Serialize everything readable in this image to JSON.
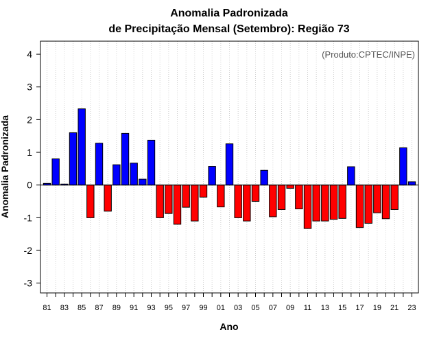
{
  "chart_data": {
    "type": "bar",
    "title_line1": "Anomalia Padronizada",
    "title_line2": "de Precipitação Mensal (Setembro): Região 73",
    "annotation": "(Produto:CPTEC/INPE)",
    "xlabel": "Ano",
    "ylabel": "Anomalia Padronizada",
    "ylim": [
      -3.3,
      4.4
    ],
    "yticks": [
      -3,
      -2,
      -1,
      0,
      1,
      2,
      3,
      4
    ],
    "grid": "vertical dotted at each year",
    "positive_color": "#0000ff",
    "negative_color": "#ff0000",
    "categories": [
      "81",
      "82",
      "83",
      "84",
      "85",
      "86",
      "87",
      "88",
      "89",
      "90",
      "91",
      "92",
      "93",
      "94",
      "95",
      "96",
      "97",
      "98",
      "99",
      "00",
      "01",
      "02",
      "03",
      "04",
      "05",
      "06",
      "07",
      "08",
      "09",
      "10",
      "11",
      "12",
      "13",
      "14",
      "15",
      "16",
      "17",
      "18",
      "19",
      "20",
      "21",
      "22",
      "23"
    ],
    "xtick_labels": [
      "81",
      "83",
      "85",
      "87",
      "89",
      "91",
      "93",
      "95",
      "97",
      "99",
      "01",
      "03",
      "05",
      "07",
      "09",
      "11",
      "13",
      "15",
      "17",
      "19",
      "21",
      "23"
    ],
    "values": [
      0.05,
      0.8,
      0.03,
      1.6,
      2.33,
      -1.0,
      1.28,
      -0.8,
      0.62,
      1.58,
      0.67,
      0.18,
      1.37,
      -1.0,
      -0.87,
      -1.2,
      -0.68,
      -1.1,
      -0.37,
      0.57,
      -0.67,
      1.26,
      -1.0,
      -1.1,
      -0.5,
      0.45,
      -0.97,
      -0.75,
      -0.1,
      -0.73,
      -1.33,
      -1.1,
      -1.1,
      -1.05,
      -1.02,
      0.56,
      -1.3,
      -1.17,
      -0.85,
      -1.03,
      -0.75,
      1.14,
      0.1
    ]
  }
}
